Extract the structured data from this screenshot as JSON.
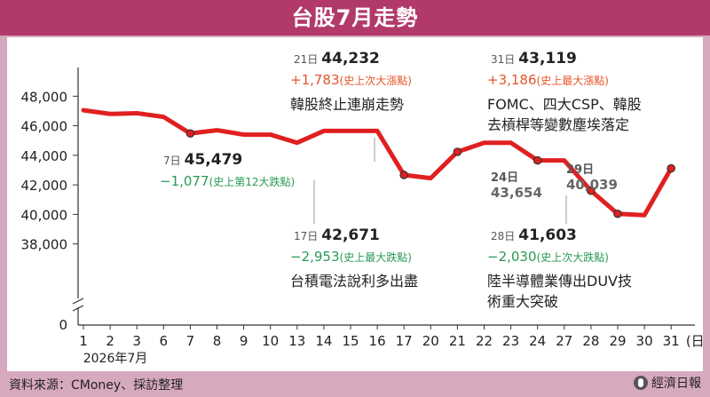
{
  "title": "台股7月走勢",
  "source": "資料來源：CMoney、採訪整理",
  "logo_text": "經濟日報",
  "chart_data": {
    "type": "line",
    "xlabel": "2026年7月",
    "x_unit": "(日)",
    "x": [
      "1",
      "2",
      "3",
      "6",
      "7",
      "8",
      "9",
      "10",
      "13",
      "14",
      "15",
      "16",
      "17",
      "20",
      "21",
      "22",
      "23",
      "24",
      "27",
      "28",
      "29",
      "30",
      "31"
    ],
    "values": [
      47050,
      46800,
      46850,
      46600,
      45479,
      45700,
      45400,
      45400,
      44850,
      45650,
      45650,
      45650,
      42671,
      42450,
      44232,
      44850,
      44850,
      43654,
      43654,
      41603,
      40039,
      39950,
      43119
    ],
    "yticks": [
      "48,000",
      "46,000",
      "44,000",
      "42,000",
      "40,000",
      "38,000"
    ],
    "ytick_values": [
      48000,
      46000,
      44000,
      42000,
      40000,
      38000
    ],
    "y_zero_label": "0",
    "ylim": [
      37500,
      48500
    ],
    "line_color": "#e02020",
    "up_color": "#e8542a",
    "down_color": "#2a9a55",
    "annotations": [
      {
        "day": "7",
        "date": "7日",
        "value": "45,479",
        "change": "−1,077",
        "note": "(史上第12大跌點)",
        "color": "#2a9a55",
        "desc": []
      },
      {
        "day": "17",
        "date": "17日",
        "value": "42,671",
        "change": "−2,953",
        "note": "(史上最大跌點)",
        "color": "#2a9a55",
        "desc": [
          "台積電法說利多出盡"
        ]
      },
      {
        "day": "21",
        "date": "21日",
        "value": "44,232",
        "change": "+1,783",
        "note": "(史上次大漲點)",
        "color": "#e8542a",
        "desc": [
          "韓股終止連崩走勢"
        ]
      },
      {
        "day": "24",
        "date": "24日",
        "value": "43,654",
        "change": "",
        "note": "",
        "color": "",
        "desc": []
      },
      {
        "day": "28",
        "date": "28日",
        "value": "41,603",
        "change": "−2,030",
        "note": "(史上次大跌點)",
        "color": "#2a9a55",
        "desc": [
          "陸半導體業傳出DUV技",
          "術重大突破"
        ]
      },
      {
        "day": "29",
        "date": "29日",
        "value": "40,039",
        "change": "",
        "note": "",
        "color": "",
        "desc": []
      },
      {
        "day": "31",
        "date": "31日",
        "value": "43,119",
        "change": "+3,186",
        "note": "(史上最大漲點)",
        "color": "#e8542a",
        "desc": [
          "FOMC、四大CSP、韓股",
          "去槓桿等變數塵埃落定"
        ]
      }
    ]
  }
}
